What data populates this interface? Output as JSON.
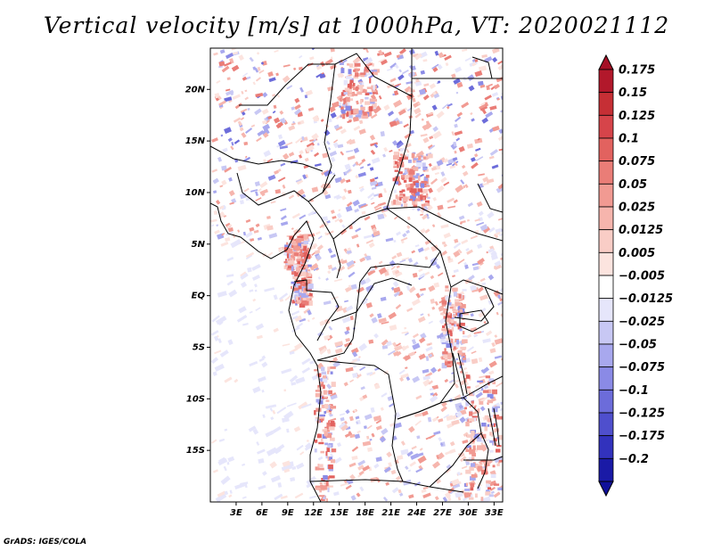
{
  "title": "Vertical velocity [m/s] at 1000hPa, VT: 2020021112",
  "credit": "GrADS: IGES/COLA",
  "map": {
    "lon_range": [
      0,
      34
    ],
    "lat_range": [
      -20,
      24
    ],
    "x_ticks": [
      {
        "lon": 3,
        "label": "3E"
      },
      {
        "lon": 6,
        "label": "6E"
      },
      {
        "lon": 9,
        "label": "9E"
      },
      {
        "lon": 12,
        "label": "12E"
      },
      {
        "lon": 15,
        "label": "15E"
      },
      {
        "lon": 18,
        "label": "18E"
      },
      {
        "lon": 21,
        "label": "21E"
      },
      {
        "lon": 24,
        "label": "24E"
      },
      {
        "lon": 27,
        "label": "27E"
      },
      {
        "lon": 30,
        "label": "30E"
      },
      {
        "lon": 33,
        "label": "33E"
      }
    ],
    "y_ticks": [
      {
        "lat": 20,
        "label": "20N"
      },
      {
        "lat": 15,
        "label": "15N"
      },
      {
        "lat": 10,
        "label": "10N"
      },
      {
        "lat": 5,
        "label": "5N"
      },
      {
        "lat": 0,
        "label": "EQ"
      },
      {
        "lat": -5,
        "label": "5S"
      },
      {
        "lat": -10,
        "label": "10S"
      },
      {
        "lat": -15,
        "label": "15S"
      }
    ]
  },
  "colorbar": {
    "levels": [
      {
        "label": "0.175",
        "color": "#b2182b"
      },
      {
        "label": "0.15",
        "color": "#c62f35"
      },
      {
        "label": "0.125",
        "color": "#d6444a"
      },
      {
        "label": "0.1",
        "color": "#e2625f"
      },
      {
        "label": "0.075",
        "color": "#ea7d77"
      },
      {
        "label": "0.05",
        "color": "#f19a92"
      },
      {
        "label": "0.025",
        "color": "#f6b5ad"
      },
      {
        "label": "0.0125",
        "color": "#f9cdc6"
      },
      {
        "label": "0.005",
        "color": "#fce4df"
      },
      {
        "label": "−0.005",
        "color": "#ffffff"
      },
      {
        "label": "−0.0125",
        "color": "#e6e6fb"
      },
      {
        "label": "−0.025",
        "color": "#c8c8f4"
      },
      {
        "label": "−0.05",
        "color": "#a8a8ee"
      },
      {
        "label": "−0.075",
        "color": "#8a8ae6"
      },
      {
        "label": "−0.1",
        "color": "#6c6cda"
      },
      {
        "label": "−0.125",
        "color": "#4f4fcd"
      },
      {
        "label": "−0.175",
        "color": "#3232bd"
      },
      {
        "label": "−0.2",
        "color": "#1a1aa6"
      }
    ],
    "top_color": "#a50f25",
    "bottom_color": "#10109a"
  }
}
